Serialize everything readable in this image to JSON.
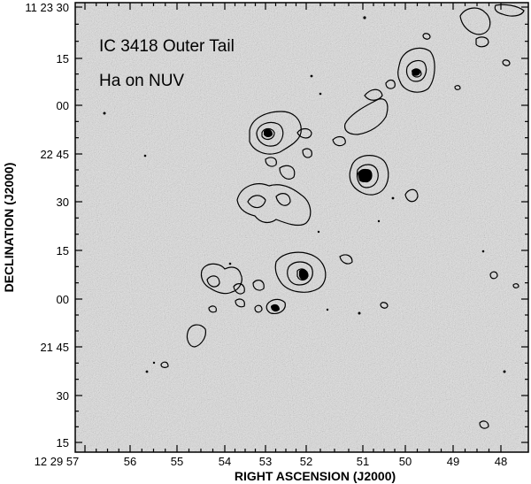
{
  "plot": {
    "title_line1": "IC 3418 Outer Tail",
    "title_line2": "Ha on NUV",
    "xlabel": "RIGHT ASCENSION (J2000)",
    "ylabel": "DECLINATION (J2000)",
    "xticks": [
      "12 29 57",
      "56",
      "55",
      "54",
      "53",
      "52",
      "51",
      "50",
      "49",
      "48"
    ],
    "yticks": [
      "11 23 30",
      "15",
      "00",
      "22 45",
      "30",
      "15",
      "00",
      "21 45",
      "30",
      "15"
    ]
  }
}
